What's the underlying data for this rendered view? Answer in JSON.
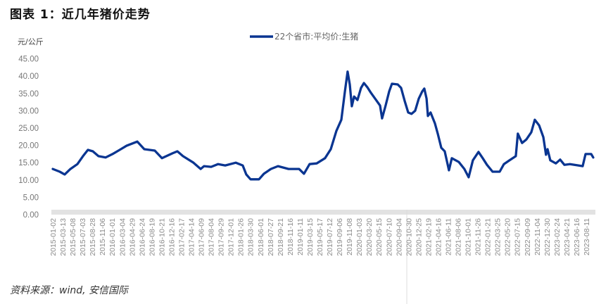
{
  "title": "图表 1：近几年猪价走势",
  "source": "资料来源：wind, 安信国际",
  "chart_data": {
    "type": "line",
    "title": "",
    "ylabel": "元/公斤",
    "xlabel": "",
    "ylim": [
      0,
      45
    ],
    "yticks": [
      "0.00",
      "5.00",
      "10.00",
      "15.00",
      "20.00",
      "25.00",
      "30.00",
      "35.00",
      "40.00",
      "45.00"
    ],
    "grid": false,
    "legend_placement": "top-center",
    "colors": {
      "series": "#0a3591"
    },
    "x_tick_labels": [
      "2015-01-02",
      "2015-03-13",
      "2015-05-08",
      "2015-07-03",
      "2015-08-28",
      "2015-11-06",
      "2016-01-01",
      "2016-03-04",
      "2016-04-29",
      "2016-06-24",
      "2016-08-19",
      "2016-10-21",
      "2016-12-16",
      "2017-02-17",
      "2017-04-14",
      "2017-06-09",
      "2017-08-04",
      "2017-09-29",
      "2017-12-01",
      "2018-01-26",
      "2018-03-30",
      "2018-06-01",
      "2018-07-27",
      "2018-09-21",
      "2018-11-16",
      "2019-01-11",
      "2019-03-15",
      "2019-05-17",
      "2019-07-12",
      "2019-09-06",
      "2019-11-08",
      "2020-01-03",
      "2020-03-20",
      "2020-05-15",
      "2020-07-10",
      "2020-09-04",
      "2020-10-30",
      "2020-12-25",
      "2021-02-19",
      "2021-04-16",
      "2021-06-11",
      "2021-08-06",
      "2021-10-01",
      "2021-11-26",
      "2022-01-21",
      "2022-03-25",
      "2022-05-20",
      "2022-07-15",
      "2022-09-09",
      "2022-11-04",
      "2022-12-30",
      "2023-02-24",
      "2023-04-21",
      "2023-06-16",
      "2023-08-11"
    ],
    "series": [
      {
        "name": "22个省市:平均价:生猪",
        "x": [
          "2015-01-02",
          "2015-02-12",
          "2015-03-13",
          "2015-04-16",
          "2015-05-27",
          "2015-06-29",
          "2015-07-28",
          "2015-08-26",
          "2015-09-28",
          "2015-11-09",
          "2015-12-20",
          "2016-01-31",
          "2016-03-12",
          "2016-05-14",
          "2016-06-24",
          "2016-08-25",
          "2016-10-06",
          "2016-12-07",
          "2017-01-05",
          "2017-02-07",
          "2017-04-10",
          "2017-05-22",
          "2017-06-11",
          "2017-07-23",
          "2017-09-02",
          "2017-10-14",
          "2017-12-15",
          "2018-01-25",
          "2018-02-15",
          "2018-03-12",
          "2018-05-01",
          "2018-05-30",
          "2018-07-10",
          "2018-08-21",
          "2018-10-22",
          "2018-12-23",
          "2019-01-21",
          "2019-02-23",
          "2019-04-06",
          "2019-05-25",
          "2019-06-28",
          "2019-07-31",
          "2019-08-29",
          "2019-09-19",
          "2019-10-05",
          "2019-10-18",
          "2019-10-30",
          "2019-11-12",
          "2019-12-02",
          "2019-12-23",
          "2020-01-09",
          "2020-01-29",
          "2020-02-19",
          "2020-03-15",
          "2020-04-13",
          "2020-04-25",
          "2020-05-16",
          "2020-06-06",
          "2020-06-22",
          "2020-07-26",
          "2020-08-15",
          "2020-09-05",
          "2020-09-26",
          "2020-10-16",
          "2020-11-06",
          "2020-11-27",
          "2020-12-18",
          "2020-12-30",
          "2021-01-12",
          "2021-01-20",
          "2021-02-05",
          "2021-03-02",
          "2021-03-19",
          "2021-04-09",
          "2021-04-29",
          "2021-05-24",
          "2021-06-10",
          "2021-07-21",
          "2021-08-23",
          "2021-09-17",
          "2021-10-12",
          "2021-11-14",
          "2021-12-09",
          "2022-01-03",
          "2022-02-05",
          "2022-03-19",
          "2022-04-13",
          "2022-05-16",
          "2022-06-22",
          "2022-07-04",
          "2022-07-29",
          "2022-08-23",
          "2022-09-21",
          "2022-10-12",
          "2022-11-06",
          "2022-12-01",
          "2022-12-17",
          "2022-12-26",
          "2023-01-11",
          "2023-02-13",
          "2023-03-10",
          "2023-04-04",
          "2023-05-07",
          "2023-06-26",
          "2023-07-21",
          "2023-08-07",
          "2023-09-09",
          "2023-09-21"
        ],
        "values": [
          13.2,
          12.4,
          11.6,
          13.2,
          14.6,
          16.9,
          18.7,
          18.3,
          16.9,
          16.5,
          17.5,
          18.7,
          19.9,
          21.1,
          18.9,
          18.5,
          16.3,
          17.7,
          18.3,
          16.9,
          15.0,
          13.2,
          14.0,
          13.8,
          14.6,
          14.2,
          15.0,
          14.2,
          11.6,
          10.2,
          10.2,
          11.8,
          13.2,
          14.0,
          13.2,
          13.2,
          11.8,
          14.6,
          14.8,
          16.3,
          18.9,
          24.2,
          27.4,
          35.6,
          41.3,
          37.6,
          31.3,
          34.1,
          33.1,
          36.6,
          38.0,
          36.8,
          35.2,
          33.5,
          31.5,
          27.8,
          31.5,
          35.6,
          37.8,
          37.6,
          36.6,
          32.9,
          29.5,
          29.1,
          30.0,
          33.5,
          35.6,
          36.4,
          33.5,
          28.5,
          29.5,
          26.4,
          23.4,
          19.3,
          18.3,
          12.8,
          16.3,
          15.2,
          13.2,
          10.8,
          15.7,
          18.1,
          16.3,
          14.4,
          12.4,
          12.4,
          14.6,
          15.7,
          16.9,
          23.4,
          20.7,
          21.7,
          23.8,
          27.4,
          25.8,
          22.4,
          17.3,
          18.9,
          15.7,
          14.8,
          15.9,
          14.4,
          14.6,
          14.2,
          14.0,
          17.5,
          17.5,
          16.5
        ]
      }
    ]
  }
}
